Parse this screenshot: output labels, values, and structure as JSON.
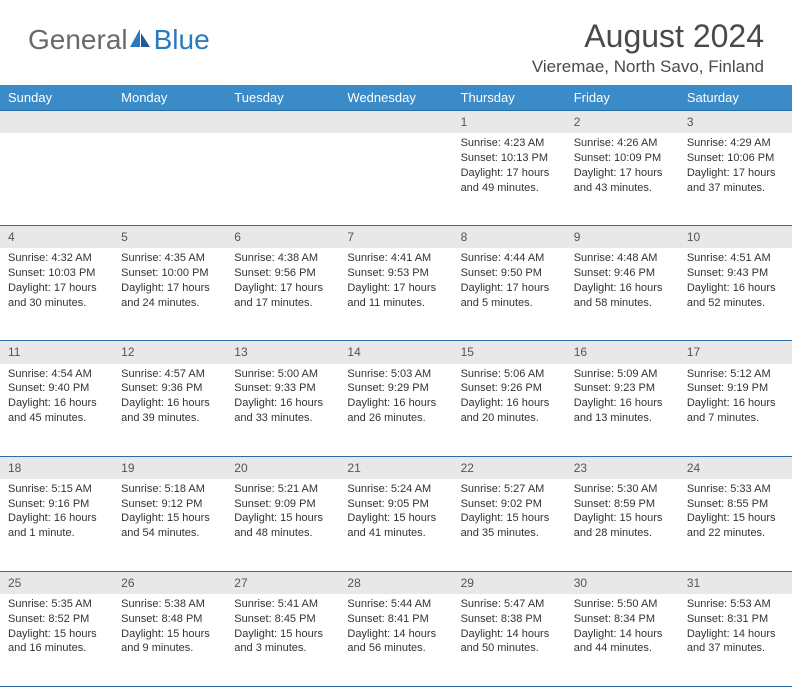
{
  "logo": {
    "text1": "General",
    "text2": "Blue"
  },
  "title": {
    "month": "August 2024",
    "location": "Vieremae, North Savo, Finland"
  },
  "colors": {
    "header_bg": "#3b8bc9",
    "header_text": "#ffffff",
    "daynum_bg": "#e8e8e8",
    "rule": "#2a6ea8",
    "logo_blue": "#2a7ac0"
  },
  "weekdays": [
    "Sunday",
    "Monday",
    "Tuesday",
    "Wednesday",
    "Thursday",
    "Friday",
    "Saturday"
  ],
  "weeks": [
    [
      null,
      null,
      null,
      null,
      {
        "n": "1",
        "sr": "4:23 AM",
        "ss": "10:13 PM",
        "dl": "17 hours and 49 minutes."
      },
      {
        "n": "2",
        "sr": "4:26 AM",
        "ss": "10:09 PM",
        "dl": "17 hours and 43 minutes."
      },
      {
        "n": "3",
        "sr": "4:29 AM",
        "ss": "10:06 PM",
        "dl": "17 hours and 37 minutes."
      }
    ],
    [
      {
        "n": "4",
        "sr": "4:32 AM",
        "ss": "10:03 PM",
        "dl": "17 hours and 30 minutes."
      },
      {
        "n": "5",
        "sr": "4:35 AM",
        "ss": "10:00 PM",
        "dl": "17 hours and 24 minutes."
      },
      {
        "n": "6",
        "sr": "4:38 AM",
        "ss": "9:56 PM",
        "dl": "17 hours and 17 minutes."
      },
      {
        "n": "7",
        "sr": "4:41 AM",
        "ss": "9:53 PM",
        "dl": "17 hours and 11 minutes."
      },
      {
        "n": "8",
        "sr": "4:44 AM",
        "ss": "9:50 PM",
        "dl": "17 hours and 5 minutes."
      },
      {
        "n": "9",
        "sr": "4:48 AM",
        "ss": "9:46 PM",
        "dl": "16 hours and 58 minutes."
      },
      {
        "n": "10",
        "sr": "4:51 AM",
        "ss": "9:43 PM",
        "dl": "16 hours and 52 minutes."
      }
    ],
    [
      {
        "n": "11",
        "sr": "4:54 AM",
        "ss": "9:40 PM",
        "dl": "16 hours and 45 minutes."
      },
      {
        "n": "12",
        "sr": "4:57 AM",
        "ss": "9:36 PM",
        "dl": "16 hours and 39 minutes."
      },
      {
        "n": "13",
        "sr": "5:00 AM",
        "ss": "9:33 PM",
        "dl": "16 hours and 33 minutes."
      },
      {
        "n": "14",
        "sr": "5:03 AM",
        "ss": "9:29 PM",
        "dl": "16 hours and 26 minutes."
      },
      {
        "n": "15",
        "sr": "5:06 AM",
        "ss": "9:26 PM",
        "dl": "16 hours and 20 minutes."
      },
      {
        "n": "16",
        "sr": "5:09 AM",
        "ss": "9:23 PM",
        "dl": "16 hours and 13 minutes."
      },
      {
        "n": "17",
        "sr": "5:12 AM",
        "ss": "9:19 PM",
        "dl": "16 hours and 7 minutes."
      }
    ],
    [
      {
        "n": "18",
        "sr": "5:15 AM",
        "ss": "9:16 PM",
        "dl": "16 hours and 1 minute."
      },
      {
        "n": "19",
        "sr": "5:18 AM",
        "ss": "9:12 PM",
        "dl": "15 hours and 54 minutes."
      },
      {
        "n": "20",
        "sr": "5:21 AM",
        "ss": "9:09 PM",
        "dl": "15 hours and 48 minutes."
      },
      {
        "n": "21",
        "sr": "5:24 AM",
        "ss": "9:05 PM",
        "dl": "15 hours and 41 minutes."
      },
      {
        "n": "22",
        "sr": "5:27 AM",
        "ss": "9:02 PM",
        "dl": "15 hours and 35 minutes."
      },
      {
        "n": "23",
        "sr": "5:30 AM",
        "ss": "8:59 PM",
        "dl": "15 hours and 28 minutes."
      },
      {
        "n": "24",
        "sr": "5:33 AM",
        "ss": "8:55 PM",
        "dl": "15 hours and 22 minutes."
      }
    ],
    [
      {
        "n": "25",
        "sr": "5:35 AM",
        "ss": "8:52 PM",
        "dl": "15 hours and 16 minutes."
      },
      {
        "n": "26",
        "sr": "5:38 AM",
        "ss": "8:48 PM",
        "dl": "15 hours and 9 minutes."
      },
      {
        "n": "27",
        "sr": "5:41 AM",
        "ss": "8:45 PM",
        "dl": "15 hours and 3 minutes."
      },
      {
        "n": "28",
        "sr": "5:44 AM",
        "ss": "8:41 PM",
        "dl": "14 hours and 56 minutes."
      },
      {
        "n": "29",
        "sr": "5:47 AM",
        "ss": "8:38 PM",
        "dl": "14 hours and 50 minutes."
      },
      {
        "n": "30",
        "sr": "5:50 AM",
        "ss": "8:34 PM",
        "dl": "14 hours and 44 minutes."
      },
      {
        "n": "31",
        "sr": "5:53 AM",
        "ss": "8:31 PM",
        "dl": "14 hours and 37 minutes."
      }
    ]
  ],
  "labels": {
    "sunrise": "Sunrise:",
    "sunset": "Sunset:",
    "daylight": "Daylight:"
  }
}
